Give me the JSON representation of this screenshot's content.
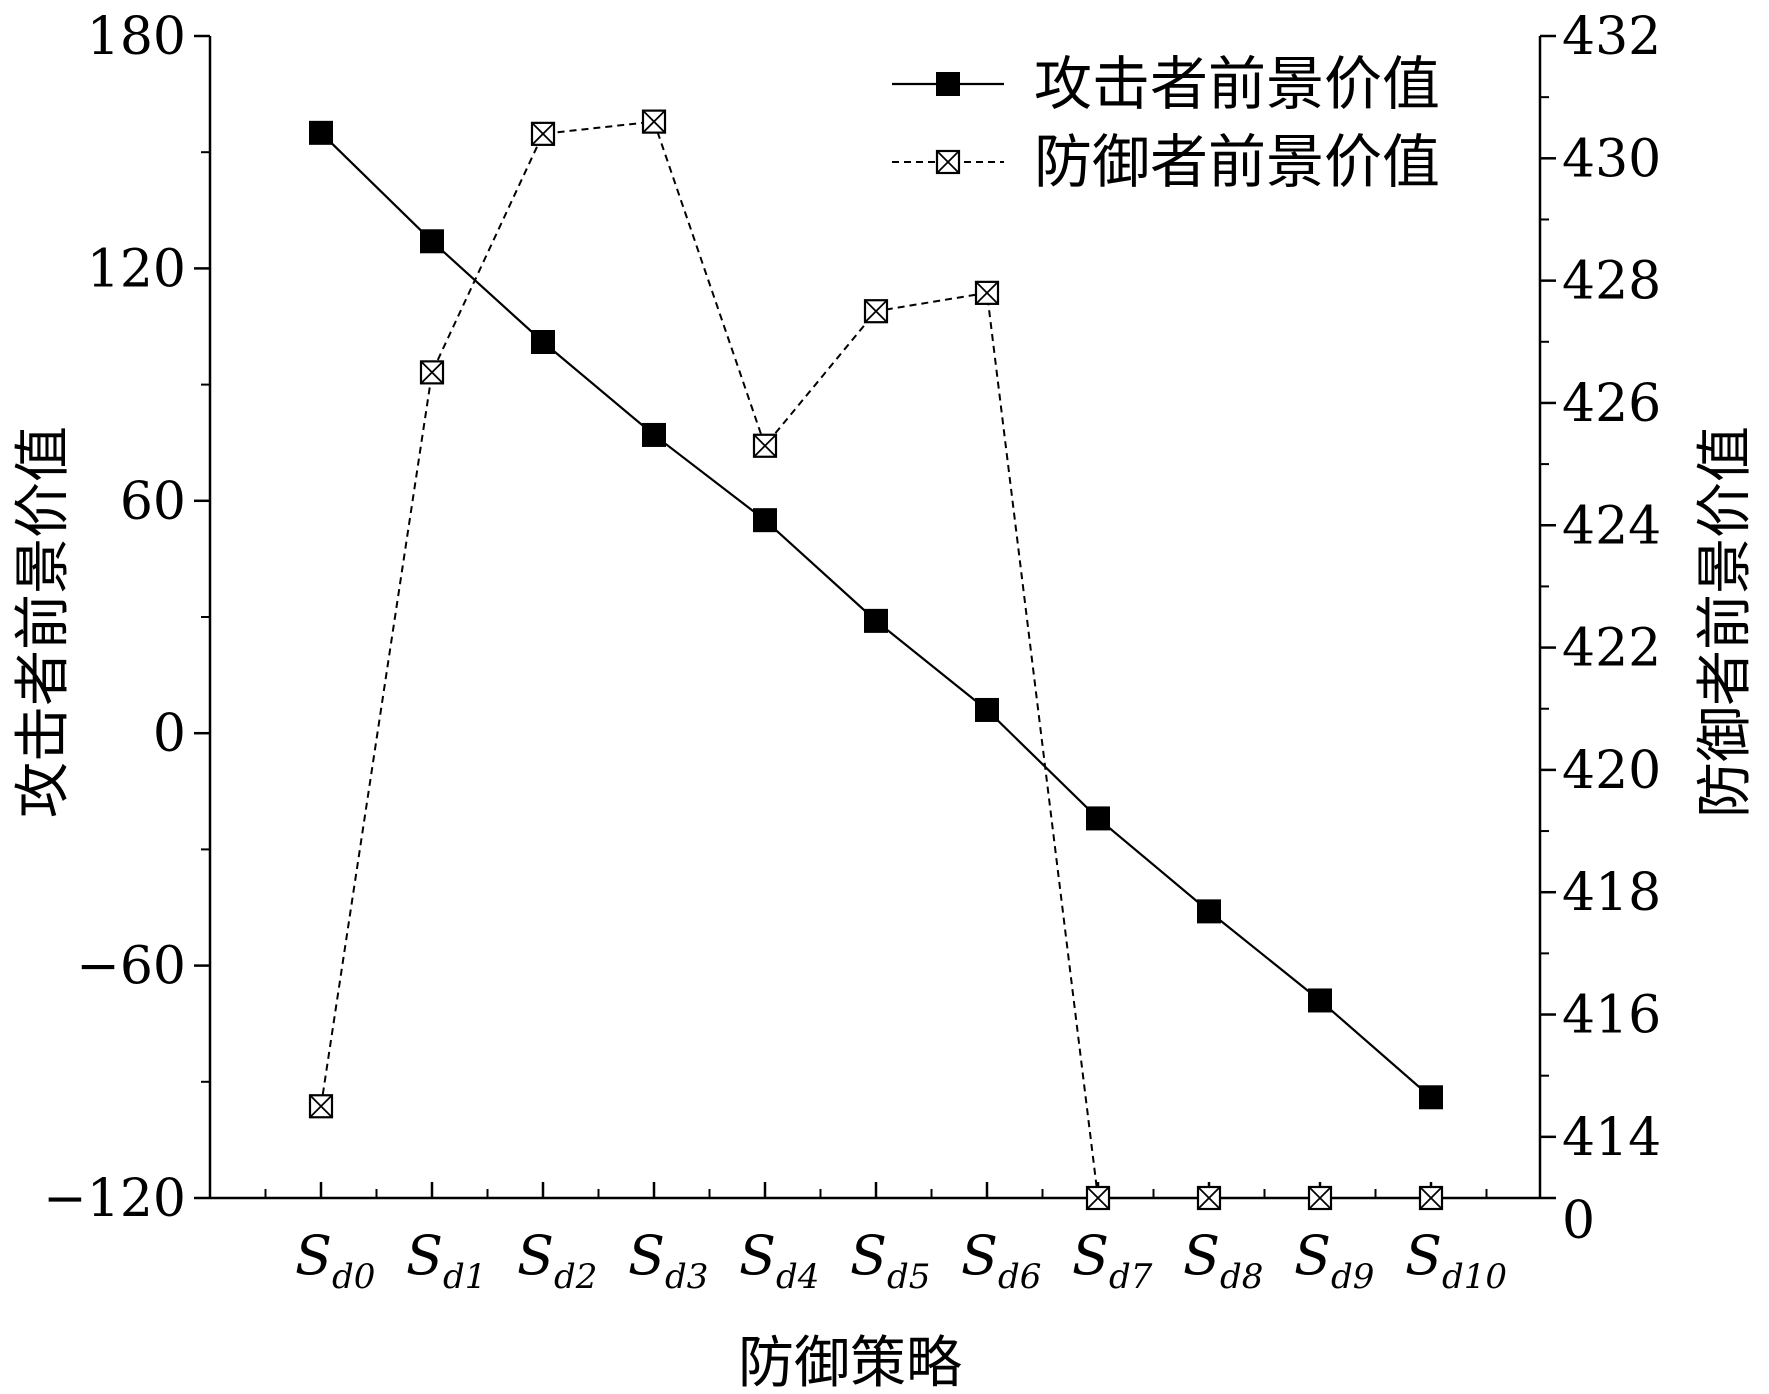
{
  "chart_data": {
    "type": "line",
    "xlabel": "防御策略",
    "ylabel": "攻击者前景价值",
    "y2label": "防御者前景价值",
    "categories": [
      {
        "main": "S",
        "sub": "d0"
      },
      {
        "main": "S",
        "sub": "d1"
      },
      {
        "main": "S",
        "sub": "d2"
      },
      {
        "main": "S",
        "sub": "d3"
      },
      {
        "main": "S",
        "sub": "d4"
      },
      {
        "main": "S",
        "sub": "d5"
      },
      {
        "main": "S",
        "sub": "d6"
      },
      {
        "main": "S",
        "sub": "d7"
      },
      {
        "main": "S",
        "sub": "d8"
      },
      {
        "main": "S",
        "sub": "d9"
      },
      {
        "main": "S",
        "sub": "d10"
      }
    ],
    "ylim": [
      -120,
      180
    ],
    "y_ticks": [
      -120,
      -60,
      0,
      60,
      120,
      180
    ],
    "y_tick_labels": [
      "−120",
      "−60",
      "0",
      "60",
      "120",
      "180"
    ],
    "y2lim": [
      0,
      432
    ],
    "y2_ticks": [
      414,
      416,
      418,
      420,
      422,
      424,
      426,
      428,
      430,
      432
    ],
    "y2_tick_labels": [
      "414",
      "416",
      "418",
      "420",
      "422",
      "424",
      "426",
      "428",
      "430",
      "432"
    ],
    "y2_break_label": "0",
    "y2_display_min": 413,
    "grid": false,
    "legend_position": "top-right",
    "series": [
      {
        "name": "攻击者前景价值",
        "axis": "left",
        "marker": "filled-square",
        "line_style": "solid",
        "color": "#000000",
        "values": [
          155,
          127,
          101,
          77,
          55,
          29,
          6,
          -22,
          -46,
          -69,
          -94
        ]
      },
      {
        "name": "防御者前景价值",
        "axis": "right",
        "marker": "crossed-square",
        "line_style": "dashed",
        "color": "#000000",
        "values": [
          414.5,
          426.5,
          430.4,
          430.6,
          425.3,
          427.5,
          427.8,
          0,
          0,
          0,
          0
        ]
      }
    ]
  }
}
